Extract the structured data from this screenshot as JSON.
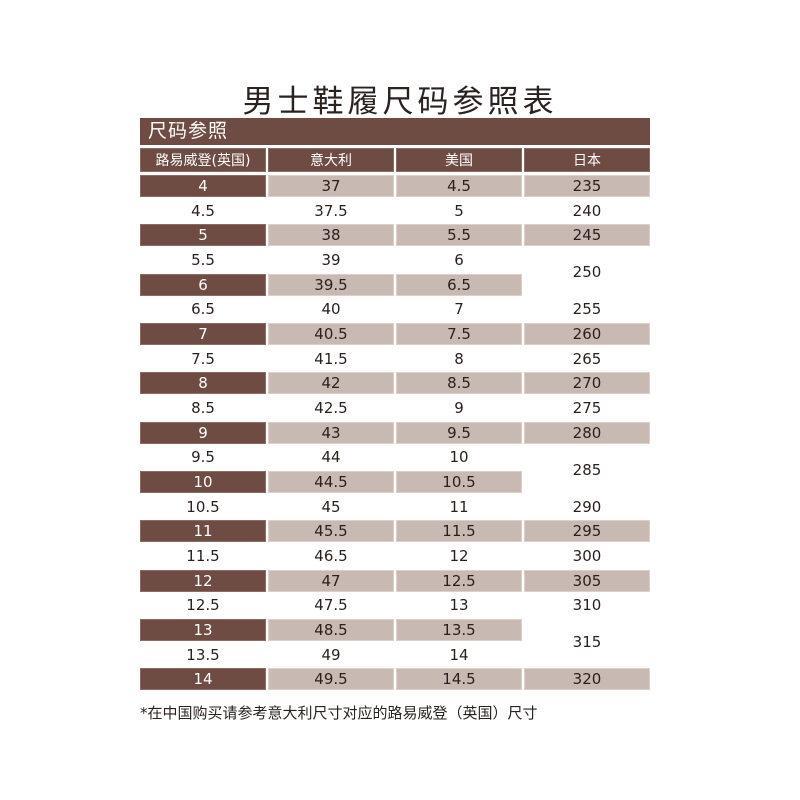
{
  "title": "男士鞋履尺码参照表",
  "section_label": "尺码参照",
  "columns": [
    "路易威登(英国)",
    "意大利",
    "美国",
    "日本"
  ],
  "rows": [
    {
      "uk": "4",
      "it": "37",
      "us": "4.5"
    },
    {
      "uk": "4.5",
      "it": "37.5",
      "us": "5"
    },
    {
      "uk": "5",
      "it": "38",
      "us": "5.5"
    },
    {
      "uk": "5.5",
      "it": "39",
      "us": "6"
    },
    {
      "uk": "6",
      "it": "39.5",
      "us": "6.5"
    },
    {
      "uk": "6.5",
      "it": "40",
      "us": "7"
    },
    {
      "uk": "7",
      "it": "40.5",
      "us": "7.5"
    },
    {
      "uk": "7.5",
      "it": "41.5",
      "us": "8"
    },
    {
      "uk": "8",
      "it": "42",
      "us": "8.5"
    },
    {
      "uk": "8.5",
      "it": "42.5",
      "us": "9"
    },
    {
      "uk": "9",
      "it": "43",
      "us": "9.5"
    },
    {
      "uk": "9.5",
      "it": "44",
      "us": "10"
    },
    {
      "uk": "10",
      "it": "44.5",
      "us": "10.5"
    },
    {
      "uk": "10.5",
      "it": "45",
      "us": "11"
    },
    {
      "uk": "11",
      "it": "45.5",
      "us": "11.5"
    },
    {
      "uk": "11.5",
      "it": "46.5",
      "us": "12"
    },
    {
      "uk": "12",
      "it": "47",
      "us": "12.5"
    },
    {
      "uk": "12.5",
      "it": "47.5",
      "us": "13"
    },
    {
      "uk": "13",
      "it": "48.5",
      "us": "13.5"
    },
    {
      "uk": "13.5",
      "it": "49",
      "us": "14"
    },
    {
      "uk": "14",
      "it": "49.5",
      "us": "14.5"
    }
  ],
  "japan": [
    {
      "value": "235",
      "span": 1
    },
    {
      "value": "240",
      "span": 1
    },
    {
      "value": "245",
      "span": 1
    },
    {
      "value": "250",
      "span": 2
    },
    {
      "value": "255",
      "span": 1
    },
    {
      "value": "260",
      "span": 1
    },
    {
      "value": "265",
      "span": 1
    },
    {
      "value": "270",
      "span": 1
    },
    {
      "value": "275",
      "span": 1
    },
    {
      "value": "280",
      "span": 1
    },
    {
      "value": "285",
      "span": 2
    },
    {
      "value": "290",
      "span": 1
    },
    {
      "value": "295",
      "span": 1
    },
    {
      "value": "300",
      "span": 1
    },
    {
      "value": "305",
      "span": 1
    },
    {
      "value": "310",
      "span": 1
    },
    {
      "value": "315",
      "span": 2
    },
    {
      "value": "320",
      "span": 1
    }
  ],
  "note": "*在中国购买请参考意大利尺寸对应的路易威登（英国）尺寸",
  "colors": {
    "dark": "#6e4b43",
    "light": "#c9b9b3"
  }
}
